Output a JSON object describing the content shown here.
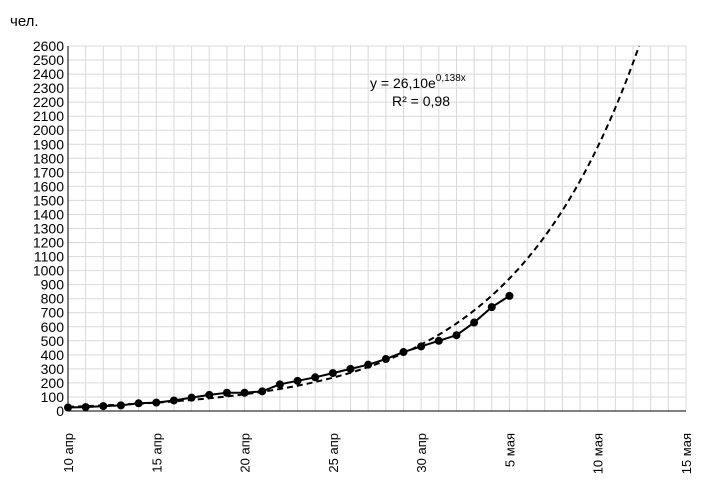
{
  "chart_data": {
    "type": "line",
    "ylabel": "чел.",
    "xlabel": "",
    "ylim": [
      0,
      2600
    ],
    "y_ticks": [
      0,
      100,
      200,
      300,
      400,
      500,
      600,
      700,
      800,
      900,
      1000,
      1100,
      1200,
      1300,
      1400,
      1500,
      1600,
      1700,
      1800,
      1900,
      2000,
      2100,
      2200,
      2300,
      2400,
      2500,
      2600
    ],
    "xlim": [
      "2020-04-10",
      "2020-05-15"
    ],
    "x_tick_labels": [
      "10 апр",
      "15 апр",
      "20 апр",
      "25 апр",
      "30 апр",
      "5 мая",
      "10 мая",
      "15 мая"
    ],
    "grid": true,
    "series": [
      {
        "style": "solid-with-markers",
        "x": [
          "2020-04-10",
          "2020-04-11",
          "2020-04-12",
          "2020-04-13",
          "2020-04-14",
          "2020-04-15",
          "2020-04-16",
          "2020-04-17",
          "2020-04-18",
          "2020-04-19",
          "2020-04-20",
          "2020-04-21",
          "2020-04-22",
          "2020-04-23",
          "2020-04-24",
          "2020-04-25",
          "2020-04-26",
          "2020-04-27",
          "2020-04-28",
          "2020-04-29",
          "2020-04-30",
          "2020-05-01",
          "2020-05-02",
          "2020-05-03",
          "2020-05-04",
          "2020-05-05"
        ],
        "values": [
          25,
          28,
          35,
          40,
          55,
          60,
          75,
          95,
          115,
          130,
          130,
          140,
          190,
          215,
          240,
          270,
          300,
          330,
          370,
          420,
          460,
          500,
          540,
          630,
          740,
          820
        ]
      },
      {
        "style": "dashed-trendline",
        "formula": {
          "a": 26.1,
          "b": 0.138,
          "x_start": "2020-04-10"
        }
      }
    ],
    "annotations": [
      {
        "text_main": "y = 26,10e",
        "text_sup": "0,138x"
      },
      {
        "text": "R² = 0,98"
      }
    ]
  }
}
